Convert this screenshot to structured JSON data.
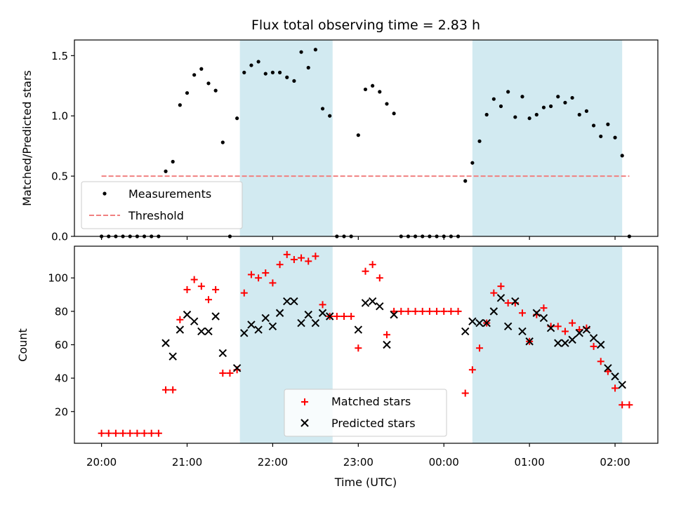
{
  "figure": {
    "title": "Flux total observing time = 2.83 h",
    "xlabel": "Time (UTC)",
    "xticks": [
      {
        "min": 0,
        "label": "20:00"
      },
      {
        "min": 60,
        "label": "21:00"
      },
      {
        "min": 120,
        "label": "22:00"
      },
      {
        "min": 180,
        "label": "23:00"
      },
      {
        "min": 240,
        "label": "00:00"
      },
      {
        "min": 300,
        "label": "01:00"
      },
      {
        "min": 360,
        "label": "02:00"
      }
    ],
    "shaded_intervals": [
      {
        "start": "21:37",
        "end": "22:42"
      },
      {
        "start": "00:20",
        "end": "02:05"
      }
    ],
    "shade_color": "#add8e6"
  },
  "chart_data": [
    {
      "type": "scatter",
      "title": "Flux total observing time = 2.83 h",
      "ylabel": "Matched/Predicted stars",
      "ylim": [
        0,
        1.63
      ],
      "yticks": [
        0,
        0.5,
        1.0,
        1.5
      ],
      "ytick_labels": [
        "0.0",
        "0.5",
        "1.0",
        "1.5"
      ],
      "xlim": [
        -19,
        390
      ],
      "legend": "lower-left",
      "threshold": {
        "name": "Threshold",
        "value": 0.5,
        "x_start": "20:00",
        "x_end": "02:10",
        "color": "#f08080"
      },
      "series": [
        {
          "name": "Measurements",
          "color": "#000000",
          "x": [
            "20:00",
            "20:05",
            "20:10",
            "20:15",
            "20:20",
            "20:25",
            "20:30",
            "20:35",
            "20:40",
            "20:45",
            "20:50",
            "20:55",
            "21:00",
            "21:05",
            "21:10",
            "21:15",
            "21:20",
            "21:25",
            "21:30",
            "21:35",
            "21:40",
            "21:45",
            "21:50",
            "21:55",
            "22:00",
            "22:05",
            "22:10",
            "22:15",
            "22:20",
            "22:25",
            "22:30",
            "22:35",
            "22:40",
            "22:45",
            "22:50",
            "22:55",
            "23:00",
            "23:05",
            "23:10",
            "23:15",
            "23:20",
            "23:25",
            "23:30",
            "23:35",
            "23:40",
            "23:45",
            "23:50",
            "23:55",
            "00:00",
            "00:05",
            "00:10",
            "00:15",
            "00:20",
            "00:25",
            "00:30",
            "00:35",
            "00:40",
            "00:45",
            "00:50",
            "00:55",
            "01:00",
            "01:05",
            "01:10",
            "01:15",
            "01:20",
            "01:25",
            "01:30",
            "01:35",
            "01:40",
            "01:45",
            "01:50",
            "01:55",
            "02:00",
            "02:05",
            "02:10"
          ],
          "y": [
            0,
            0,
            0,
            0,
            0,
            0,
            0,
            0,
            0,
            0.54,
            0.62,
            1.09,
            1.19,
            1.34,
            1.39,
            1.27,
            1.21,
            0.78,
            0,
            0.98,
            1.36,
            1.42,
            1.45,
            1.35,
            1.36,
            1.36,
            1.32,
            1.29,
            1.53,
            1.4,
            1.55,
            1.06,
            1.0,
            0,
            0,
            0,
            0.84,
            1.22,
            1.25,
            1.2,
            1.1,
            1.02,
            0,
            0,
            0,
            0,
            0,
            0,
            0,
            0,
            0,
            0.46,
            0.61,
            0.79,
            1.01,
            1.14,
            1.08,
            1.2,
            0.99,
            1.16,
            0.98,
            1.01,
            1.07,
            1.08,
            1.16,
            1.11,
            1.15,
            1.01,
            1.04,
            0.92,
            0.83,
            0.93,
            0.82,
            0.67,
            0
          ]
        }
      ]
    },
    {
      "type": "scatter",
      "ylabel": "Count",
      "ylim": [
        1,
        119
      ],
      "yticks": [
        20,
        40,
        60,
        80,
        100
      ],
      "ytick_labels": [
        "20",
        "40",
        "60",
        "80",
        "100"
      ],
      "xlim": [
        -19,
        390
      ],
      "legend": "lower-center",
      "series": [
        {
          "name": "Matched stars",
          "marker": "+",
          "color": "#ff0000",
          "x": [
            "20:00",
            "20:05",
            "20:10",
            "20:15",
            "20:20",
            "20:25",
            "20:30",
            "20:35",
            "20:40",
            "20:45",
            "20:50",
            "20:55",
            "21:00",
            "21:05",
            "21:10",
            "21:15",
            "21:20",
            "21:25",
            "21:30",
            "21:35",
            "21:40",
            "21:45",
            "21:50",
            "21:55",
            "22:00",
            "22:05",
            "22:10",
            "22:15",
            "22:20",
            "22:25",
            "22:30",
            "22:35",
            "22:40",
            "22:45",
            "22:50",
            "22:55",
            "23:00",
            "23:05",
            "23:10",
            "23:15",
            "23:20",
            "23:25",
            "23:30",
            "23:35",
            "23:40",
            "23:45",
            "23:50",
            "23:55",
            "00:00",
            "00:05",
            "00:10",
            "00:15",
            "00:20",
            "00:25",
            "00:30",
            "00:35",
            "00:40",
            "00:45",
            "00:50",
            "00:55",
            "01:00",
            "01:05",
            "01:10",
            "01:15",
            "01:20",
            "01:25",
            "01:30",
            "01:35",
            "01:40",
            "01:45",
            "01:50",
            "01:55",
            "02:00",
            "02:05",
            "02:10"
          ],
          "y": [
            7,
            7,
            7,
            7,
            7,
            7,
            7,
            7,
            7,
            33,
            33,
            75,
            93,
            99,
            95,
            87,
            93,
            43,
            43,
            45,
            91,
            102,
            100,
            103,
            97,
            108,
            114,
            111,
            112,
            110,
            113,
            84,
            77,
            77,
            77,
            77,
            58,
            104,
            108,
            100,
            66,
            80,
            80,
            80,
            80,
            80,
            80,
            80,
            80,
            80,
            80,
            31,
            45,
            58,
            73,
            91,
            95,
            85,
            85,
            79,
            62,
            78,
            82,
            71,
            71,
            68,
            73,
            69,
            70,
            59,
            50,
            44,
            34,
            24,
            24
          ]
        },
        {
          "name": "Predicted stars",
          "marker": "x",
          "color": "#000000",
          "x": [
            "20:45",
            "20:50",
            "20:55",
            "21:00",
            "21:05",
            "21:10",
            "21:15",
            "21:20",
            "21:25",
            "21:35",
            "21:40",
            "21:45",
            "21:50",
            "21:55",
            "22:00",
            "22:05",
            "22:10",
            "22:15",
            "22:20",
            "22:25",
            "22:30",
            "22:35",
            "22:40",
            "23:00",
            "23:05",
            "23:10",
            "23:15",
            "23:20",
            "23:25",
            "00:15",
            "00:20",
            "00:25",
            "00:30",
            "00:35",
            "00:40",
            "00:45",
            "00:50",
            "00:55",
            "01:00",
            "01:05",
            "01:10",
            "01:15",
            "01:20",
            "01:25",
            "01:30",
            "01:35",
            "01:40",
            "01:45",
            "01:50",
            "01:55",
            "02:00",
            "02:05"
          ],
          "y": [
            61,
            53,
            69,
            78,
            74,
            68,
            68,
            77,
            55,
            46,
            67,
            72,
            69,
            76,
            71,
            79,
            86,
            86,
            73,
            78,
            73,
            79,
            77,
            69,
            85,
            86,
            83,
            60,
            78,
            68,
            74,
            73,
            73,
            80,
            88,
            71,
            86,
            68,
            62,
            79,
            76,
            70,
            61,
            61,
            63,
            67,
            69,
            64,
            60,
            46,
            41,
            36
          ]
        }
      ]
    }
  ]
}
